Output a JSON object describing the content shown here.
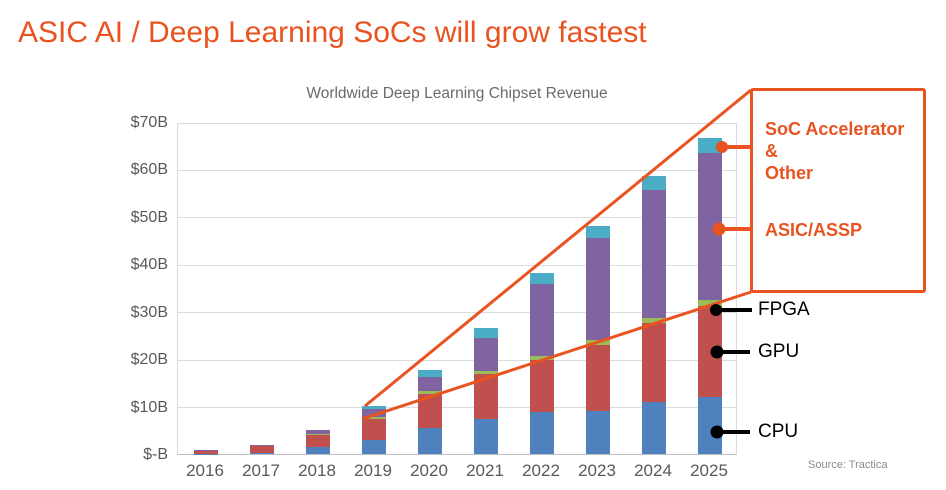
{
  "slide": {
    "title": "ASIC AI / Deep Learning SoCs will grow fastest",
    "source": "Source: Tractica",
    "accent_color": "#E8531F"
  },
  "chart_data": {
    "type": "bar",
    "stacked": true,
    "title": "Worldwide Deep Learning Chipset Revenue",
    "unit": "USD billions",
    "categories": [
      "2016",
      "2017",
      "2018",
      "2019",
      "2020",
      "2021",
      "2022",
      "2023",
      "2024",
      "2025"
    ],
    "series": [
      {
        "name": "CPU",
        "color": "#4F81BD",
        "values": [
          0.1,
          0.3,
          1.4,
          3.0,
          5.4,
          7.4,
          8.8,
          9.1,
          11.0,
          12.0
        ]
      },
      {
        "name": "GPU",
        "color": "#C0504D",
        "values": [
          0.5,
          1.3,
          2.6,
          4.4,
          7.3,
          9.4,
          11.1,
          13.9,
          16.6,
          19.3
        ]
      },
      {
        "name": "FPGA",
        "color": "#9BBB59",
        "values": [
          0.05,
          0.1,
          0.2,
          0.4,
          0.5,
          0.8,
          0.8,
          1.0,
          1.0,
          1.2
        ]
      },
      {
        "name": "ASIC/ASSP",
        "color": "#8064A2",
        "values": [
          0.1,
          0.15,
          0.8,
          1.7,
          3.1,
          6.8,
          15.1,
          21.5,
          27.0,
          31.0
        ]
      },
      {
        "name": "SoC Accelerator & Other",
        "color": "#4BACC6",
        "values": [
          0.0,
          0.0,
          0.1,
          0.7,
          1.4,
          2.1,
          2.3,
          2.6,
          3.0,
          3.1
        ]
      }
    ],
    "totals": [
      0.75,
      1.85,
      5.1,
      10.2,
      17.7,
      26.5,
      38.1,
      48.1,
      58.6,
      66.6
    ],
    "y_axis": {
      "min": 0,
      "max": 70,
      "tick_interval": 10,
      "tick_labels": [
        "$-B",
        "$10B",
        "$20B",
        "$30B",
        "$40B",
        "$50B",
        "$60B",
        "$70B"
      ]
    },
    "grid": true,
    "legend_position": "right-callouts"
  },
  "callout_box": {
    "soc_label": "SoC Accelerator\n&\nOther",
    "asic_label": "ASIC/ASSP"
  },
  "annotations": {
    "fpga": "FPGA",
    "gpu": "GPU",
    "cpu": "CPU"
  }
}
